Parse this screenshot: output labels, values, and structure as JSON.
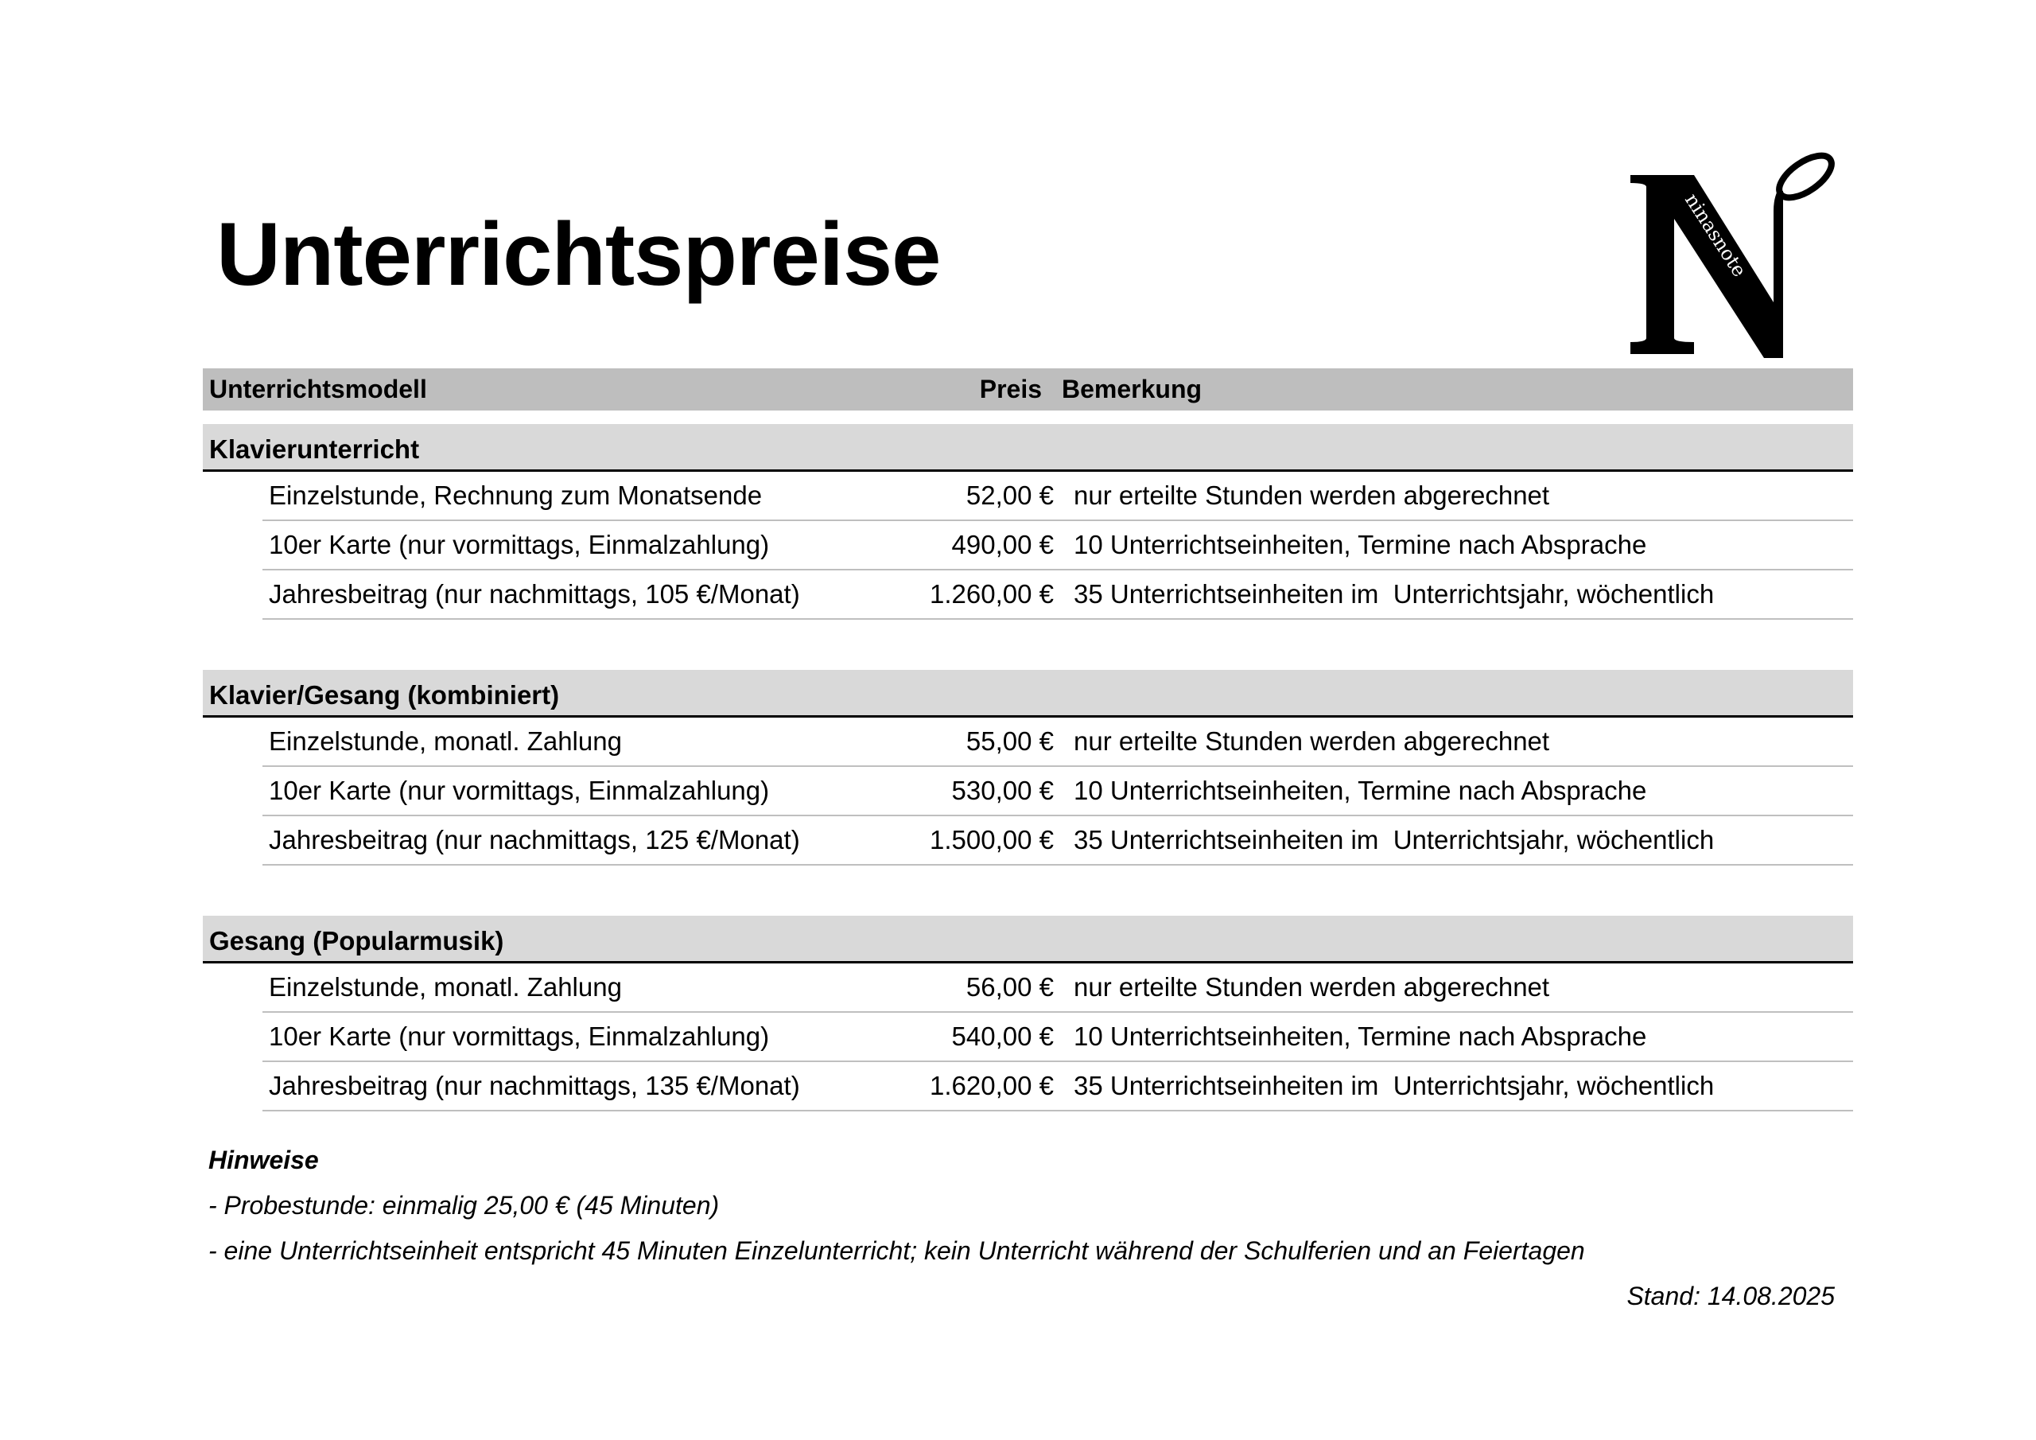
{
  "title": "Unterrichtspreise",
  "logo": {
    "text": "ninasnote",
    "letter": "N"
  },
  "table": {
    "headers": {
      "model": "Unterrichtsmodell",
      "price": "Preis",
      "remark": "Bemerkung"
    },
    "groups": [
      {
        "name": "Klavierunterricht",
        "rows": [
          {
            "model": "Einzelstunde, Rechnung zum Monatsende",
            "price": "52,00 €",
            "remark": "nur erteilte Stunden werden abgerechnet"
          },
          {
            "model": "10er Karte (nur vormittags, Einmalzahlung)",
            "price": "490,00 €",
            "remark": "10 Unterrichtseinheiten, Termine nach Absprache"
          },
          {
            "model": "Jahresbeitrag (nur nachmittags, 105 €/Monat)",
            "price": "1.260,00 €",
            "remark": "35 Unterrichtseinheiten im  Unterrichtsjahr, wöchentlich"
          }
        ]
      },
      {
        "name": "Klavier/Gesang (kombiniert)",
        "rows": [
          {
            "model": "Einzelstunde, monatl. Zahlung",
            "price": "55,00 €",
            "remark": "nur erteilte Stunden werden abgerechnet"
          },
          {
            "model": "10er Karte (nur vormittags, Einmalzahlung)",
            "price": "530,00 €",
            "remark": "10 Unterrichtseinheiten, Termine nach Absprache"
          },
          {
            "model": "Jahresbeitrag (nur nachmittags, 125 €/Monat)",
            "price": "1.500,00 €",
            "remark": "35 Unterrichtseinheiten im  Unterrichtsjahr, wöchentlich"
          }
        ]
      },
      {
        "name": "Gesang (Popularmusik)",
        "rows": [
          {
            "model": "Einzelstunde, monatl. Zahlung",
            "price": "56,00 €",
            "remark": "nur erteilte Stunden werden abgerechnet"
          },
          {
            "model": "10er Karte (nur vormittags, Einmalzahlung)",
            "price": "540,00 €",
            "remark": "10 Unterrichtseinheiten, Termine nach Absprache"
          },
          {
            "model": "Jahresbeitrag (nur nachmittags, 135 €/Monat)",
            "price": "1.620,00 €",
            "remark": "35 Unterrichtseinheiten im  Unterrichtsjahr, wöchentlich"
          }
        ]
      }
    ]
  },
  "notes": {
    "heading": "Hinweise",
    "lines": [
      "- Probestunde: einmalig 25,00 € (45 Minuten)",
      "- eine Unterrichtseinheit entspricht 45 Minuten Einzelunterricht; kein Unterricht während der Schulferien und an Feiertagen"
    ],
    "stand": "Stand: 14.08.2025"
  }
}
